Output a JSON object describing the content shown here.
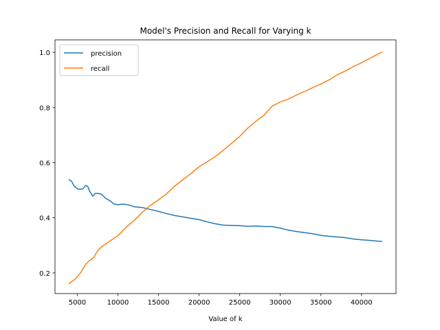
{
  "chart_data": {
    "type": "line",
    "title": "Model's Precision and Recall for Varying k",
    "xlabel": "Value of k",
    "ylabel": "",
    "xlim": [
      2250,
      44250
    ],
    "ylim": [
      0.125,
      1.045
    ],
    "x_ticks": [
      5000,
      10000,
      15000,
      20000,
      25000,
      30000,
      35000,
      40000
    ],
    "y_ticks": [
      0.2,
      0.4,
      0.6,
      0.8,
      1.0
    ],
    "x_tick_labels": [
      "5000",
      "10000",
      "15000",
      "20000",
      "25000",
      "30000",
      "35000",
      "40000"
    ],
    "y_tick_labels": [
      "0.2",
      "0.4",
      "0.6",
      "0.8",
      "1.0"
    ],
    "grid": false,
    "legend": {
      "position": "top-left"
    },
    "series": [
      {
        "name": "precision",
        "color": "#1f77b4",
        "x": [
          4000,
          4300,
          4600,
          5000,
          5300,
          5700,
          6000,
          6300,
          6500,
          6900,
          7200,
          7600,
          8000,
          8500,
          9000,
          9500,
          10000,
          10500,
          11000,
          11500,
          12000,
          13000,
          14000,
          15000,
          16000,
          17000,
          18000,
          19000,
          20000,
          21000,
          22000,
          23000,
          24000,
          25000,
          26000,
          27000,
          28000,
          29000,
          30000,
          31000,
          32000,
          33000,
          34000,
          35000,
          36000,
          37000,
          38000,
          39000,
          40000,
          41000,
          42000,
          42500
        ],
        "y": [
          0.538,
          0.532,
          0.515,
          0.505,
          0.503,
          0.505,
          0.517,
          0.513,
          0.497,
          0.478,
          0.488,
          0.488,
          0.485,
          0.47,
          0.462,
          0.45,
          0.447,
          0.449,
          0.448,
          0.445,
          0.44,
          0.437,
          0.43,
          0.423,
          0.415,
          0.408,
          0.403,
          0.398,
          0.393,
          0.385,
          0.378,
          0.373,
          0.372,
          0.371,
          0.369,
          0.37,
          0.368,
          0.368,
          0.362,
          0.355,
          0.35,
          0.346,
          0.342,
          0.336,
          0.333,
          0.33,
          0.328,
          0.323,
          0.32,
          0.318,
          0.315,
          0.314
        ]
      },
      {
        "name": "recall",
        "color": "#ff7f0e",
        "x": [
          4000,
          4500,
          5000,
          5500,
          6000,
          6500,
          7000,
          7500,
          8000,
          8500,
          9000,
          10000,
          11000,
          12000,
          13000,
          14000,
          15000,
          16000,
          17000,
          18000,
          19000,
          20000,
          21000,
          22000,
          23000,
          24000,
          25000,
          26000,
          27000,
          28000,
          29000,
          30000,
          31000,
          32000,
          33000,
          34000,
          35000,
          36000,
          37000,
          38000,
          39000,
          40000,
          41000,
          42000,
          42500
        ],
        "y": [
          0.162,
          0.172,
          0.185,
          0.205,
          0.23,
          0.245,
          0.255,
          0.28,
          0.295,
          0.305,
          0.315,
          0.335,
          0.365,
          0.39,
          0.42,
          0.445,
          0.465,
          0.487,
          0.515,
          0.538,
          0.56,
          0.585,
          0.603,
          0.622,
          0.645,
          0.67,
          0.695,
          0.725,
          0.75,
          0.772,
          0.805,
          0.82,
          0.83,
          0.845,
          0.858,
          0.872,
          0.885,
          0.9,
          0.918,
          0.932,
          0.948,
          0.962,
          0.978,
          0.993,
          1.0
        ]
      }
    ]
  }
}
